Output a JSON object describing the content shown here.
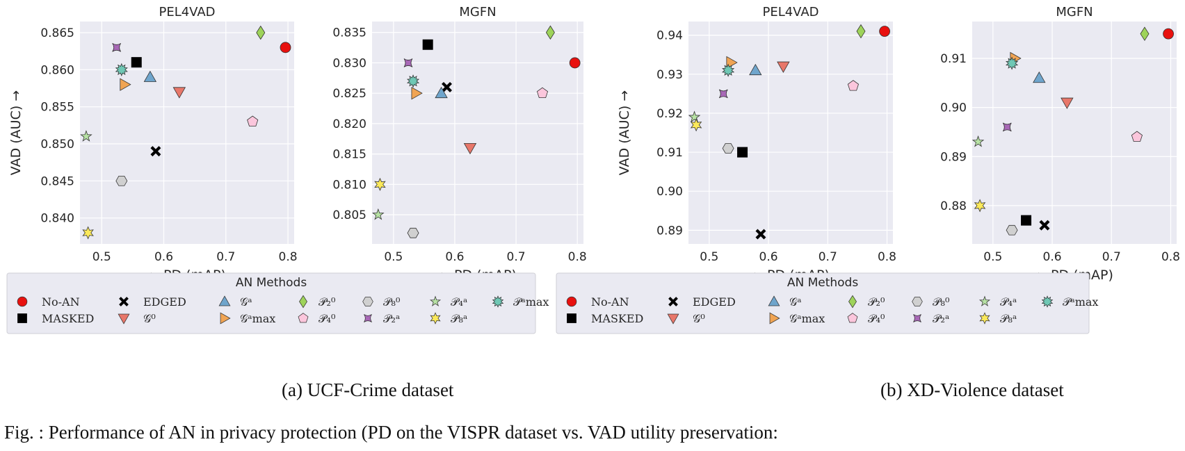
{
  "figure": {
    "fig_caption": "Fig. : Performance of AN in privacy protection (PD on the VISPR dataset  vs. VAD utility preservation:",
    "subfig_captions": [
      "(a)  UCF-Crime dataset",
      "(b) XD-Violence dataset"
    ],
    "legend_title": "AN Methods"
  },
  "methods": [
    {
      "id": "noan",
      "label": "No-AN",
      "marker": "circle",
      "color": "#e8110f"
    },
    {
      "id": "masked",
      "label": "MASKED",
      "marker": "square",
      "color": "#000000"
    },
    {
      "id": "edged",
      "label": "EDGED",
      "marker": "x",
      "color": "#000000"
    },
    {
      "id": "g0",
      "label": "𝒢⁰",
      "marker": "tri_down",
      "color": "#e8776a"
    },
    {
      "id": "ga",
      "label": "𝒢ᵃ",
      "marker": "tri_up",
      "color": "#6fa5cc"
    },
    {
      "id": "gamax",
      "label": "𝒢ᵃmax",
      "marker": "tri_right",
      "color": "#f0a453"
    },
    {
      "id": "p20",
      "label": "𝒫₂⁰",
      "marker": "diamond",
      "color": "#9ed35a"
    },
    {
      "id": "p40",
      "label": "𝒫₄⁰",
      "marker": "pentagon",
      "color": "#fbc6dc"
    },
    {
      "id": "p80",
      "label": "𝒫₈⁰",
      "marker": "hexagon",
      "color": "#d0d0d0"
    },
    {
      "id": "p2a",
      "label": "𝒫₂ᵃ",
      "marker": "bowtie",
      "color": "#a868b7"
    },
    {
      "id": "p4a",
      "label": "𝒫₄ᵃ",
      "marker": "star4",
      "color": "#b7e2a4"
    },
    {
      "id": "p8a",
      "label": "𝒫₈ᵃ",
      "marker": "star8",
      "color": "#fbe95a"
    },
    {
      "id": "pamax",
      "label": "𝒫ᵃmax",
      "marker": "star12",
      "color": "#6fc8b5"
    }
  ],
  "chart_data": [
    {
      "type": "scatter",
      "title": "PEL4VAD",
      "xlabel": "← PD (mAP)",
      "ylabel": "VAD (AUC) →",
      "xlim": [
        0.465,
        0.81
      ],
      "ylim": [
        0.8365,
        0.8665
      ],
      "xticks": [
        0.5,
        0.6,
        0.7,
        0.8
      ],
      "xticklabels": [
        "0.5",
        "0.6",
        "0.7",
        "0.8"
      ],
      "yticks": [
        0.84,
        0.845,
        0.85,
        0.855,
        0.86,
        0.865
      ],
      "yticklabels": [
        "0.840",
        "0.845",
        "0.850",
        "0.855",
        "0.860",
        "0.865"
      ],
      "grid": true,
      "points": [
        {
          "method": "noan",
          "x": 0.796,
          "y": 0.863
        },
        {
          "method": "masked",
          "x": 0.556,
          "y": 0.861
        },
        {
          "method": "edged",
          "x": 0.587,
          "y": 0.849
        },
        {
          "method": "g0",
          "x": 0.625,
          "y": 0.857
        },
        {
          "method": "ga",
          "x": 0.578,
          "y": 0.859
        },
        {
          "method": "gamax",
          "x": 0.537,
          "y": 0.858
        },
        {
          "method": "p20",
          "x": 0.756,
          "y": 0.865
        },
        {
          "method": "p40",
          "x": 0.743,
          "y": 0.853
        },
        {
          "method": "p80",
          "x": 0.532,
          "y": 0.845
        },
        {
          "method": "p2a",
          "x": 0.524,
          "y": 0.863
        },
        {
          "method": "p4a",
          "x": 0.475,
          "y": 0.851
        },
        {
          "method": "p8a",
          "x": 0.478,
          "y": 0.838
        },
        {
          "method": "pamax",
          "x": 0.532,
          "y": 0.86
        }
      ]
    },
    {
      "type": "scatter",
      "title": "MGFN",
      "xlabel": "← PD (mAP)",
      "ylabel": "",
      "xlim": [
        0.465,
        0.81
      ],
      "ylim": [
        0.8002,
        0.8368
      ],
      "xticks": [
        0.5,
        0.6,
        0.7,
        0.8
      ],
      "xticklabels": [
        "0.5",
        "0.6",
        "0.7",
        "0.8"
      ],
      "yticks": [
        0.805,
        0.81,
        0.815,
        0.82,
        0.825,
        0.83,
        0.835
      ],
      "yticklabels": [
        "0.805",
        "0.810",
        "0.815",
        "0.820",
        "0.825",
        "0.830",
        "0.835"
      ],
      "grid": true,
      "points": [
        {
          "method": "noan",
          "x": 0.796,
          "y": 0.83
        },
        {
          "method": "masked",
          "x": 0.556,
          "y": 0.833
        },
        {
          "method": "edged",
          "x": 0.587,
          "y": 0.826
        },
        {
          "method": "g0",
          "x": 0.625,
          "y": 0.816
        },
        {
          "method": "ga",
          "x": 0.578,
          "y": 0.825
        },
        {
          "method": "gamax",
          "x": 0.537,
          "y": 0.825
        },
        {
          "method": "p20",
          "x": 0.756,
          "y": 0.835
        },
        {
          "method": "p40",
          "x": 0.743,
          "y": 0.825
        },
        {
          "method": "p80",
          "x": 0.532,
          "y": 0.802
        },
        {
          "method": "p2a",
          "x": 0.524,
          "y": 0.83
        },
        {
          "method": "p4a",
          "x": 0.475,
          "y": 0.805
        },
        {
          "method": "p8a",
          "x": 0.478,
          "y": 0.81
        },
        {
          "method": "pamax",
          "x": 0.532,
          "y": 0.827
        }
      ]
    },
    {
      "type": "scatter",
      "title": "PEL4VAD",
      "xlabel": "← PD (mAP)",
      "ylabel": "VAD (AUC) →",
      "xlim": [
        0.465,
        0.81
      ],
      "ylim": [
        0.8865,
        0.9435
      ],
      "xticks": [
        0.5,
        0.6,
        0.7,
        0.8
      ],
      "xticklabels": [
        "0.5",
        "0.6",
        "0.7",
        "0.8"
      ],
      "yticks": [
        0.89,
        0.9,
        0.91,
        0.92,
        0.93,
        0.94
      ],
      "yticklabels": [
        "0.89",
        "0.90",
        "0.91",
        "0.92",
        "0.93",
        "0.94"
      ],
      "grid": true,
      "points": [
        {
          "method": "noan",
          "x": 0.796,
          "y": 0.941
        },
        {
          "method": "masked",
          "x": 0.556,
          "y": 0.91
        },
        {
          "method": "edged",
          "x": 0.587,
          "y": 0.889
        },
        {
          "method": "g0",
          "x": 0.625,
          "y": 0.932
        },
        {
          "method": "ga",
          "x": 0.578,
          "y": 0.931
        },
        {
          "method": "gamax",
          "x": 0.537,
          "y": 0.933
        },
        {
          "method": "p20",
          "x": 0.756,
          "y": 0.941
        },
        {
          "method": "p40",
          "x": 0.743,
          "y": 0.927
        },
        {
          "method": "p80",
          "x": 0.532,
          "y": 0.911
        },
        {
          "method": "p2a",
          "x": 0.524,
          "y": 0.925
        },
        {
          "method": "p4a",
          "x": 0.475,
          "y": 0.919
        },
        {
          "method": "p8a",
          "x": 0.478,
          "y": 0.917
        },
        {
          "method": "pamax",
          "x": 0.532,
          "y": 0.931
        }
      ]
    },
    {
      "type": "scatter",
      "title": "MGFN",
      "xlabel": "← PD (mAP)",
      "ylabel": "",
      "xlim": [
        0.465,
        0.81
      ],
      "ylim": [
        0.8722,
        0.9175
      ],
      "xticks": [
        0.5,
        0.6,
        0.7,
        0.8
      ],
      "xticklabels": [
        "0.5",
        "0.6",
        "0.7",
        "0.8"
      ],
      "yticks": [
        0.88,
        0.89,
        0.9,
        0.91
      ],
      "yticklabels": [
        "0.88",
        "0.89",
        "0.90",
        "0.91"
      ],
      "grid": true,
      "points": [
        {
          "method": "noan",
          "x": 0.796,
          "y": 0.915
        },
        {
          "method": "masked",
          "x": 0.556,
          "y": 0.877
        },
        {
          "method": "edged",
          "x": 0.587,
          "y": 0.876
        },
        {
          "method": "g0",
          "x": 0.625,
          "y": 0.901
        },
        {
          "method": "ga",
          "x": 0.578,
          "y": 0.906
        },
        {
          "method": "gamax",
          "x": 0.537,
          "y": 0.91
        },
        {
          "method": "p20",
          "x": 0.756,
          "y": 0.915
        },
        {
          "method": "p40",
          "x": 0.743,
          "y": 0.894
        },
        {
          "method": "p80",
          "x": 0.532,
          "y": 0.875
        },
        {
          "method": "p2a",
          "x": 0.524,
          "y": 0.896
        },
        {
          "method": "p4a",
          "x": 0.475,
          "y": 0.893
        },
        {
          "method": "p8a",
          "x": 0.478,
          "y": 0.88
        },
        {
          "method": "pamax",
          "x": 0.532,
          "y": 0.909
        }
      ]
    }
  ]
}
